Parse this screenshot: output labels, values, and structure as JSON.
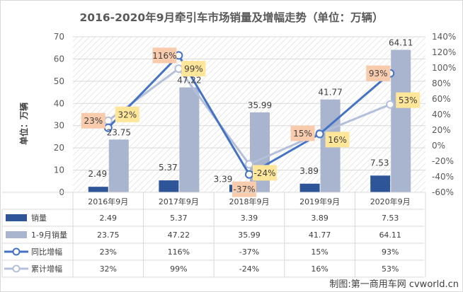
{
  "title": "2016-2020年9月牵引车市场销量及增幅走势（单位：万辆）",
  "ylabel": "单位：万辆",
  "credit": "制图:第一商用车网 cvworld.cn",
  "colors": {
    "sales_bar": "#2E5597",
    "cum_bar": "#A9B5CE",
    "yoy_line": "#4472C4",
    "cum_line": "#B4C0DA",
    "yoy_label_bg": "#F8CBAD",
    "cum_label_bg": "#FFE699"
  },
  "chart_data": {
    "type": "bar",
    "categories": [
      "2016年9月",
      "2017年9月",
      "2018年9月",
      "2019年9月",
      "2020年9月"
    ],
    "series": [
      {
        "name": "销量",
        "kind": "bar",
        "axis": "left",
        "values": [
          2.49,
          5.37,
          3.39,
          3.89,
          7.53
        ],
        "labels": [
          "2.49",
          "5.37",
          "3.39",
          "3.89",
          "7.53"
        ]
      },
      {
        "name": "1-9月销量",
        "kind": "bar",
        "axis": "left",
        "values": [
          23.75,
          47.22,
          35.99,
          41.77,
          64.11
        ],
        "labels": [
          "23.75",
          "47.22",
          "35.99",
          "41.77",
          "64.11"
        ]
      },
      {
        "name": "同比增幅",
        "kind": "line",
        "axis": "right",
        "values": [
          23,
          116,
          -37,
          15,
          93
        ],
        "labels": [
          "23%",
          "116%",
          "-37%",
          "15%",
          "93%"
        ]
      },
      {
        "name": "累计增幅",
        "kind": "line",
        "axis": "right",
        "values": [
          32,
          99,
          -24,
          16,
          53
        ],
        "labels": [
          "32%",
          "99%",
          "-24%",
          "16%",
          "53%"
        ]
      }
    ],
    "ylim": [
      0,
      70
    ],
    "yticks": [
      0,
      10,
      20,
      30,
      40,
      50,
      60,
      70
    ],
    "y2lim": [
      -60,
      140
    ],
    "y2ticks": [
      "-60%",
      "-40%",
      "-20%",
      "0%",
      "20%",
      "40%",
      "60%",
      "80%",
      "100%",
      "120%",
      "140%"
    ],
    "grid": true,
    "legend": "data-table-bottom"
  }
}
